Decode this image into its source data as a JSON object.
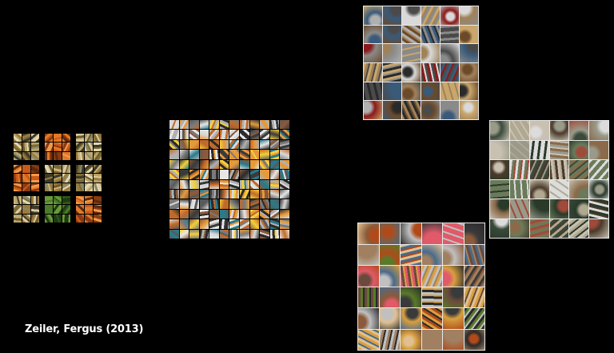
{
  "caption": "Zeiler, Fergus (2013)",
  "palette": {
    "layer1": [
      "#7a6a3a",
      "#b8a46a",
      "#d9c9a0",
      "#3b3a2a",
      "#9b7b3b",
      "#e2d7b0",
      "#6a5a2a",
      "#c7b27a",
      "#8a8a6a"
    ],
    "layer1_orange": [
      "#c85a1a",
      "#e07a2a",
      "#8a3a10",
      "#f09a4a",
      "#5a2a10"
    ],
    "layer1_green": [
      "#2f5a1a",
      "#4a7a2a",
      "#1f3a10",
      "#6a9a3a"
    ],
    "layer2": [
      "#c06a2a",
      "#e59a3a",
      "#7a7a7a",
      "#b0b0b0",
      "#3a3a3a",
      "#d8d8d8",
      "#2a7a8a",
      "#f2d03a",
      "#8a5a3a",
      "#e6e6e6",
      "#5a5a5a",
      "#2b2b2b"
    ],
    "layer3": [
      "#4a4a4a",
      "#8a8a8a",
      "#c9a66b",
      "#6b4a2a",
      "#2a2a2a",
      "#b0b0b0",
      "#8a1a1a",
      "#d9d9d9",
      "#3a5a7a",
      "#a0825a"
    ],
    "layer4": [
      "#6a7a5a",
      "#9a9a8a",
      "#3a4a3a",
      "#b0a890",
      "#4a3a2a",
      "#c8c0b0",
      "#8a6a4a",
      "#2a3a2a",
      "#a04a3a",
      "#dcdcdc"
    ],
    "layer5": [
      "#b04a1a",
      "#d8a040",
      "#5a7a2a",
      "#c0c0c0",
      "#8a5a3a",
      "#2a2a2a",
      "#e0c090",
      "#6a4a3a",
      "#3a3a3a",
      "#a08060",
      "#e05a6a",
      "#4a6a8a"
    ]
  }
}
